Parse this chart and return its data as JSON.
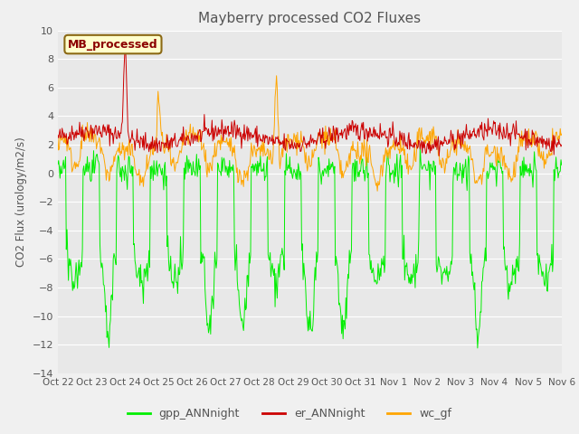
{
  "title": "Mayberry processed CO2 Fluxes",
  "ylabel": "CO2 Flux (urology/m2/s)",
  "ylim": [
    -14,
    10
  ],
  "yticks": [
    10,
    8,
    6,
    4,
    2,
    0,
    -2,
    -4,
    -6,
    -8,
    -10,
    -12,
    -14
  ],
  "xlabels": [
    "Oct 22",
    "Oct 23",
    "Oct 24",
    "Oct 25",
    "Oct 26",
    "Oct 27",
    "Oct 28",
    "Oct 29",
    "Oct 30",
    "Oct 31",
    "Nov 1",
    "Nov 2",
    "Nov 3",
    "Nov 4",
    "Nov 5",
    "Nov 6"
  ],
  "legend_label": "MB_processed",
  "legend_text_color": "#8B0000",
  "legend_box_edgecolor": "#8B6914",
  "legend_box_facecolor": "#FFFFCC",
  "line_colors": {
    "gpp": "#00EE00",
    "er": "#CC0000",
    "wc": "#FFA500"
  },
  "legend_lines": {
    "gpp_ANNnight": "#00EE00",
    "er_ANNnight": "#CC0000",
    "wc_gf": "#FFA500"
  },
  "n_days": 15,
  "pts_per_day": 48,
  "figsize": [
    6.4,
    4.8
  ],
  "dpi": 100,
  "fig_bg": "#f0f0f0",
  "ax_bg": "#e8e8e8",
  "grid_color": "#ffffff",
  "tick_color": "#555555",
  "title_color": "#555555"
}
